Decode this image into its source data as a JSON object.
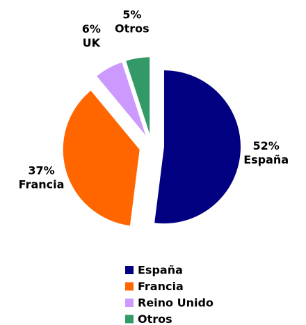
{
  "chart_data": {
    "type": "pie",
    "categories": [
      "España",
      "Francia",
      "Reino Unido",
      "Otros"
    ],
    "labels": [
      "España",
      "Francia",
      "UK",
      "Otros"
    ],
    "values": [
      52,
      37,
      6,
      5
    ],
    "value_labels": [
      "52%",
      "37%",
      "6%",
      "5%"
    ],
    "colors": [
      "#000080",
      "#ff6600",
      "#cc99ff",
      "#339966"
    ],
    "exploded": true,
    "legend": "bottom"
  }
}
